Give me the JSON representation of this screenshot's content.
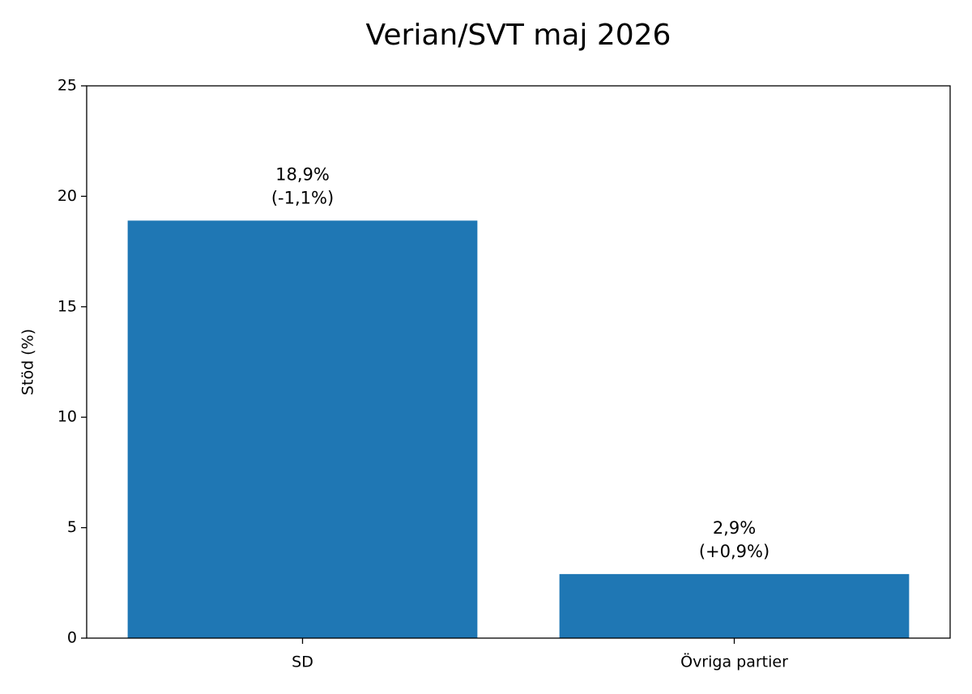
{
  "chart_data": {
    "type": "bar",
    "title": "Verian/SVT maj 2026",
    "y_label": "Stöd (%)",
    "categories": [
      "SD",
      "Övriga partier"
    ],
    "values": [
      18.9,
      2.9
    ],
    "value_labels": [
      "18,9%",
      "2,9%"
    ],
    "change_labels": [
      "(-1,1%)",
      "(+0,9%)"
    ],
    "color": "#1f77b4",
    "ylim": [
      0,
      25
    ],
    "yticks": [
      0,
      5,
      10,
      15,
      20,
      25
    ],
    "grid": false
  }
}
